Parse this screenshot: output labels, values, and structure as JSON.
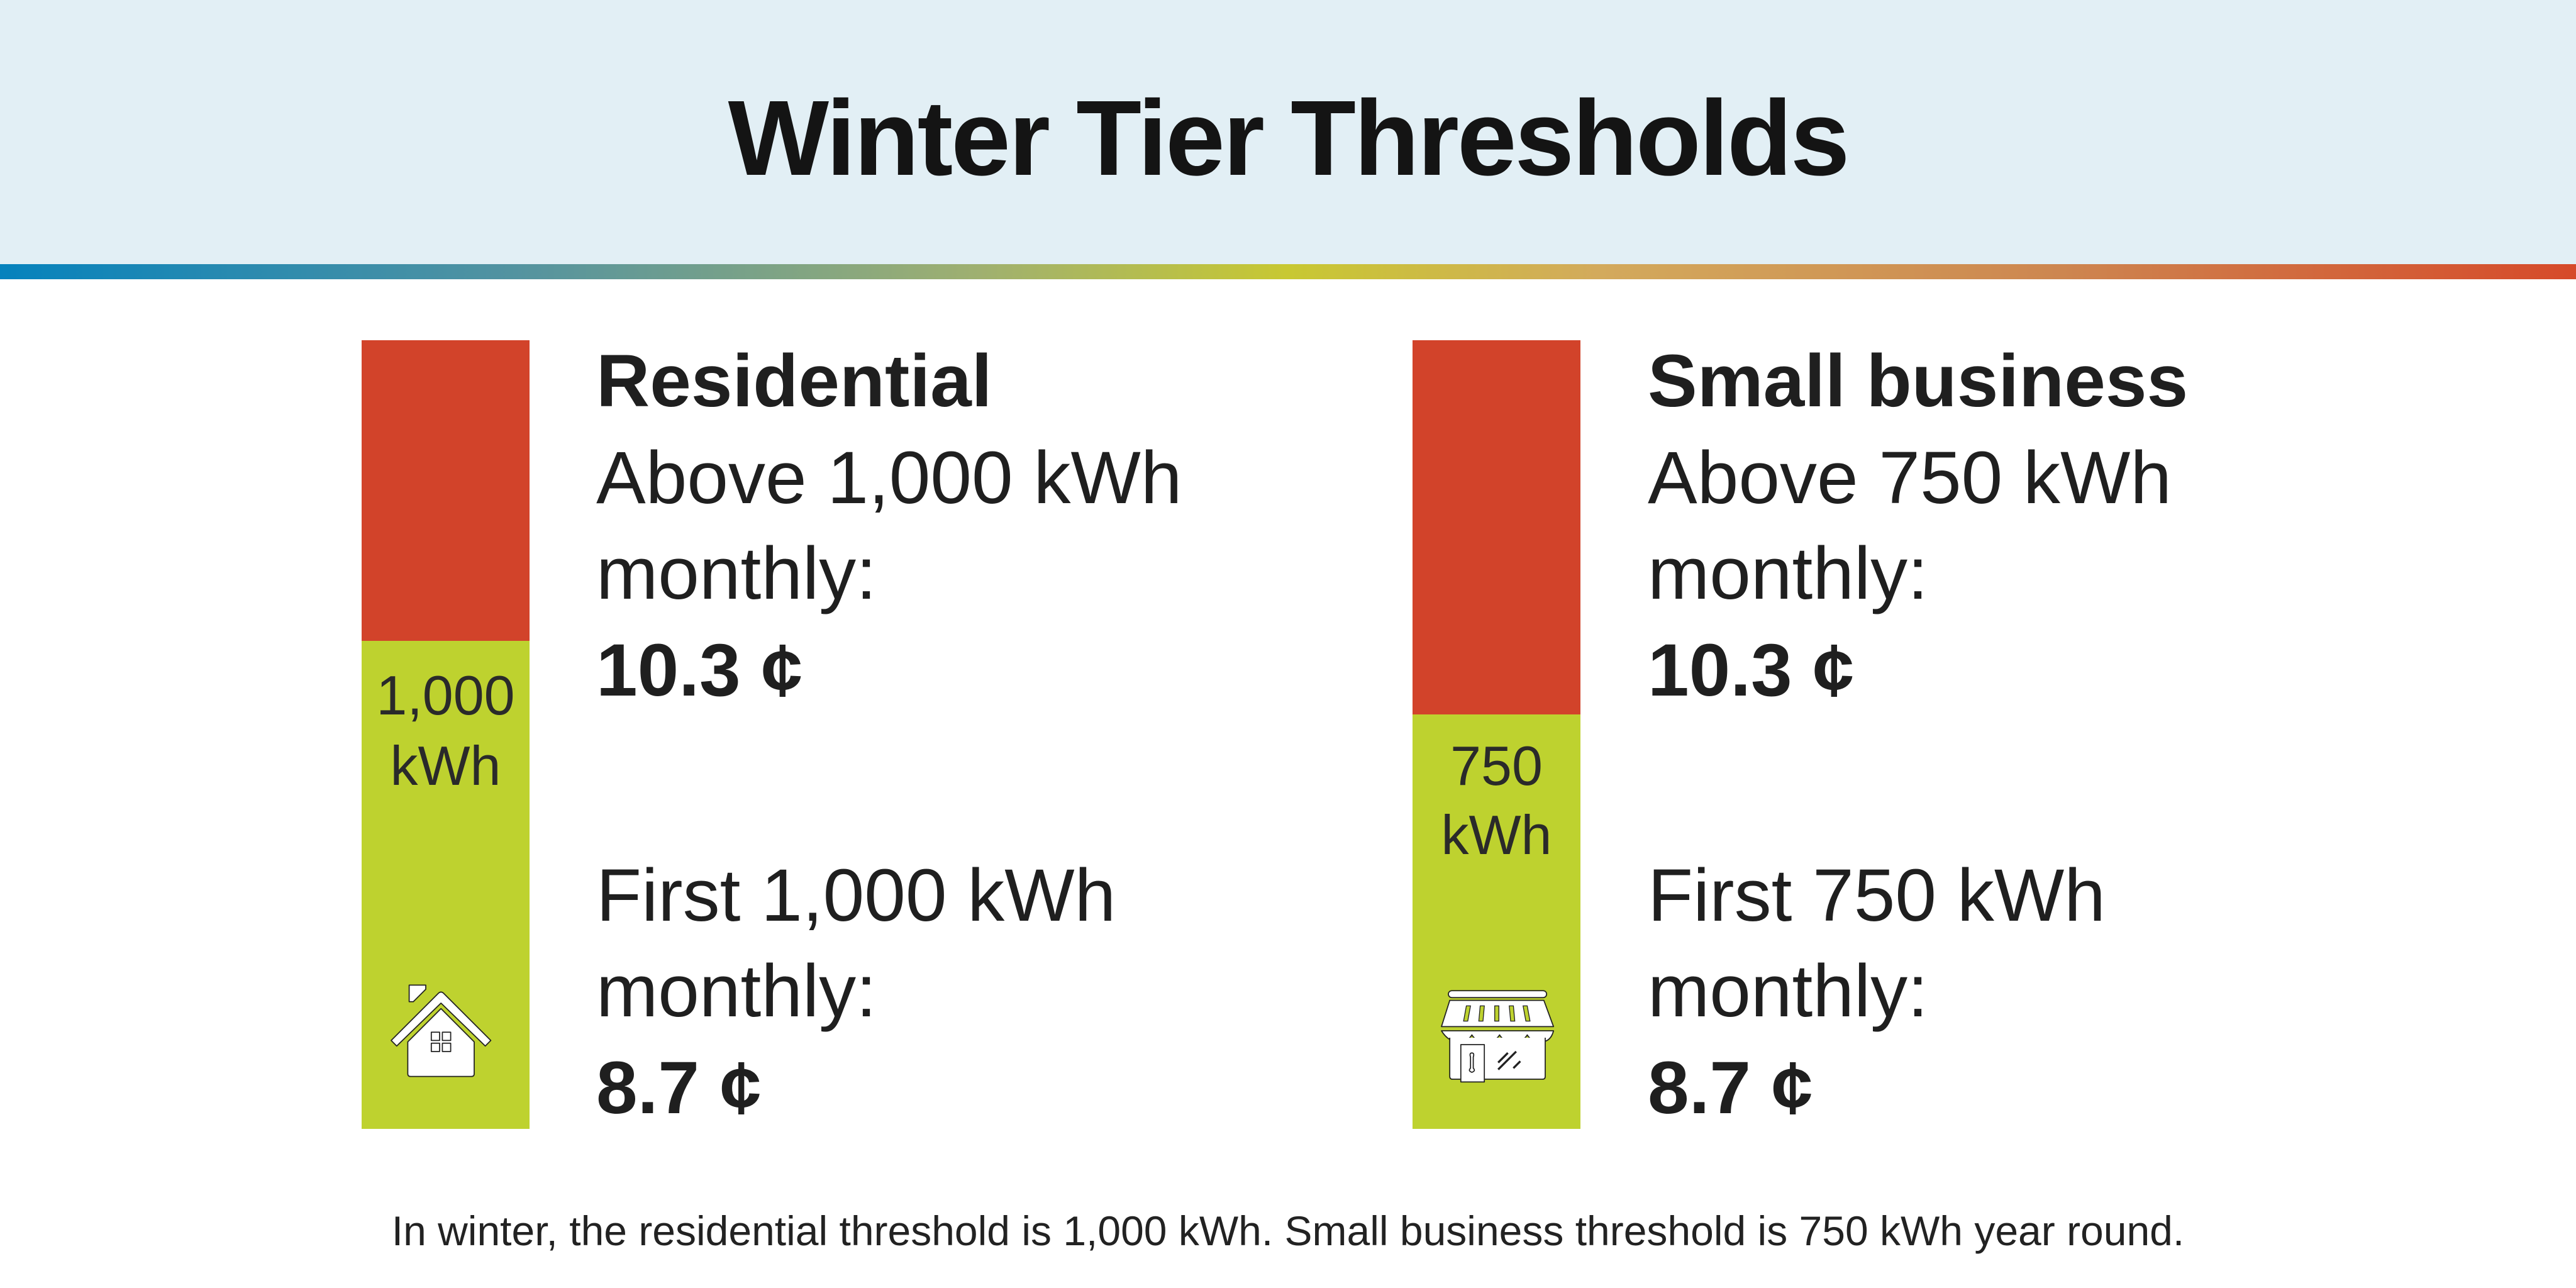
{
  "title": "Winter Tier Thresholds",
  "colors": {
    "header_bg": "#e2eff5",
    "upper_tier": "#d2432a",
    "lower_tier": "#bed22f"
  },
  "panels": [
    {
      "heading": "Residential",
      "icon": "house-icon",
      "threshold_label": [
        "1,000",
        "kWh"
      ],
      "threshold_fraction": 0.62,
      "upper_line1": "Above 1,000 kWh",
      "upper_line2": "monthly:",
      "upper_price": "10.3 ¢",
      "lower_line1": "First 1,000 kWh",
      "lower_line2": "monthly:",
      "lower_price": "8.7 ¢"
    },
    {
      "heading": "Small business",
      "icon": "storefront-icon",
      "threshold_label": [
        "750",
        "kWh"
      ],
      "threshold_fraction": 0.52,
      "upper_line1": "Above 750 kWh",
      "upper_line2": "monthly:",
      "upper_price": "10.3 ¢",
      "lower_line1": "First 750 kWh",
      "lower_line2": "monthly:",
      "lower_price": "8.7 ¢"
    }
  ],
  "footer": "In winter, the residential threshold is 1,000 kWh. Small business threshold is 750 kWh year round."
}
